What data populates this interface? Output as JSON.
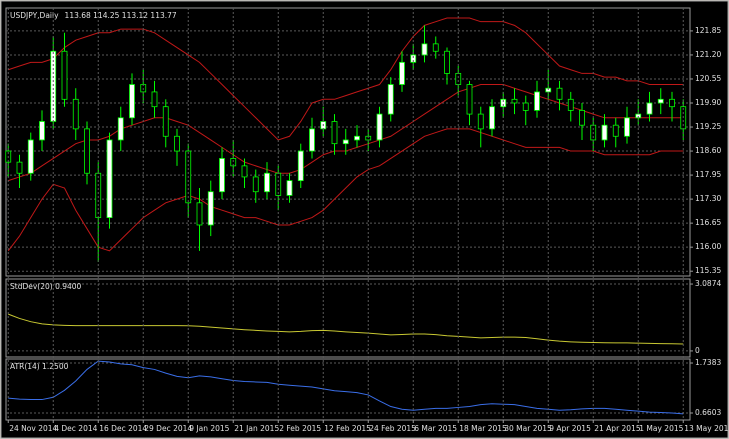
{
  "chart_data": [
    {
      "type": "candlestick",
      "title": "USDJPY,Daily",
      "subtitle": "113.68 114.25 113.12 113.77",
      "up_color": "#ffffff",
      "down_color": "#000000",
      "wick_color": "#00ff00",
      "open": [
        118.6,
        118.3,
        118.0,
        118.9,
        119.4,
        121.3,
        120.0,
        119.2,
        118.0,
        116.8,
        118.9,
        119.5,
        120.4,
        120.2,
        119.8,
        119.0,
        118.6,
        117.2,
        116.6,
        117.5,
        118.4,
        118.2,
        117.9,
        117.5,
        118.0,
        117.4,
        117.8,
        118.6,
        119.2,
        119.4,
        118.8,
        118.9,
        119.0,
        118.9,
        119.6,
        120.4,
        121.0,
        121.2,
        121.5,
        121.3,
        120.7,
        120.4,
        119.6,
        119.2,
        119.8,
        120.0,
        119.9,
        119.7,
        120.2,
        120.3,
        120.0,
        119.7,
        119.3,
        118.9,
        119.3,
        119.0,
        119.5,
        119.6,
        119.9,
        120.0,
        119.8
      ],
      "high": [
        118.8,
        118.5,
        119.1,
        119.7,
        121.7,
        121.8,
        120.3,
        119.4,
        118.3,
        119.1,
        119.8,
        120.7,
        120.8,
        120.5,
        120.0,
        119.2,
        118.8,
        117.6,
        117.8,
        118.7,
        118.9,
        118.4,
        118.1,
        118.3,
        118.2,
        118.0,
        118.8,
        119.5,
        119.8,
        119.6,
        119.2,
        119.3,
        119.2,
        119.8,
        120.6,
        121.3,
        121.5,
        122.0,
        121.7,
        121.4,
        120.9,
        120.5,
        119.8,
        120.0,
        120.2,
        120.3,
        120.1,
        120.5,
        120.8,
        120.5,
        120.2,
        119.9,
        119.5,
        119.6,
        119.5,
        119.8,
        120.0,
        120.2,
        120.3,
        120.2,
        120.0
      ],
      "low": [
        117.9,
        117.6,
        117.8,
        118.6,
        119.2,
        119.8,
        118.9,
        117.7,
        115.6,
        116.5,
        118.6,
        119.3,
        119.9,
        119.5,
        118.7,
        118.2,
        116.8,
        115.9,
        116.3,
        117.3,
        117.9,
        117.6,
        117.2,
        117.3,
        117.0,
        117.2,
        117.6,
        118.4,
        119.0,
        118.5,
        118.5,
        118.7,
        118.6,
        118.7,
        119.4,
        120.2,
        120.8,
        121.0,
        121.1,
        120.4,
        120.1,
        119.3,
        118.7,
        119.0,
        119.5,
        119.6,
        119.3,
        119.5,
        120.0,
        119.7,
        119.4,
        118.9,
        118.6,
        118.7,
        118.7,
        118.8,
        119.3,
        119.4,
        119.6,
        119.4,
        118.9
      ],
      "close": [
        118.3,
        118.0,
        118.9,
        119.4,
        121.3,
        120.0,
        119.2,
        118.0,
        116.8,
        118.9,
        119.5,
        120.4,
        120.2,
        119.8,
        119.0,
        118.6,
        117.2,
        116.6,
        117.5,
        118.4,
        118.2,
        117.9,
        117.5,
        118.0,
        117.4,
        117.8,
        118.6,
        119.2,
        119.4,
        118.8,
        118.9,
        119.0,
        118.9,
        119.6,
        120.4,
        121.0,
        121.2,
        121.5,
        121.3,
        120.7,
        120.4,
        119.6,
        119.2,
        119.8,
        120.0,
        119.9,
        119.7,
        120.2,
        120.3,
        120.0,
        119.7,
        119.3,
        118.9,
        119.3,
        119.0,
        119.5,
        119.6,
        119.9,
        120.0,
        119.8,
        119.2
      ],
      "series": [
        {
          "color": "#c01818",
          "values": [
            120.8,
            120.9,
            121.0,
            121.0,
            121.1,
            121.4,
            121.6,
            121.7,
            121.8,
            121.8,
            121.9,
            121.9,
            121.9,
            121.8,
            121.6,
            121.4,
            121.2,
            121.0,
            120.7,
            120.4,
            120.1,
            119.8,
            119.5,
            119.2,
            118.9,
            119.0,
            119.4,
            119.9,
            120.0,
            120.0,
            120.1,
            120.2,
            120.3,
            120.4,
            120.8,
            121.3,
            121.7,
            122.0,
            122.1,
            122.2,
            122.2,
            122.2,
            122.1,
            122.1,
            122.1,
            122.0,
            121.8,
            121.5,
            121.2,
            120.9,
            120.8,
            120.7,
            120.7,
            120.6,
            120.6,
            120.5,
            120.5,
            120.4,
            120.4,
            120.4,
            120.4
          ]
        },
        {
          "color": "#c01818",
          "values": [
            117.8,
            117.9,
            118.0,
            118.2,
            118.4,
            118.6,
            118.8,
            118.9,
            118.9,
            119.0,
            119.2,
            119.3,
            119.4,
            119.5,
            119.5,
            119.4,
            119.3,
            119.1,
            118.9,
            118.7,
            118.5,
            118.3,
            118.2,
            118.1,
            118.0,
            118.0,
            118.1,
            118.3,
            118.5,
            118.6,
            118.6,
            118.7,
            118.8,
            118.9,
            119.0,
            119.2,
            119.4,
            119.6,
            119.8,
            120.0,
            120.2,
            120.3,
            120.4,
            120.4,
            120.4,
            120.3,
            120.2,
            120.1,
            120.0,
            119.9,
            119.8,
            119.7,
            119.6,
            119.5,
            119.5,
            119.5,
            119.5,
            119.5,
            119.5,
            119.5,
            119.5
          ]
        },
        {
          "color": "#c01818",
          "values": [
            115.9,
            116.3,
            116.8,
            117.3,
            117.7,
            117.6,
            117.0,
            116.5,
            116.0,
            115.9,
            116.2,
            116.5,
            116.8,
            117.0,
            117.2,
            117.3,
            117.4,
            117.3,
            117.1,
            117.0,
            116.9,
            116.8,
            116.8,
            116.7,
            116.6,
            116.6,
            116.7,
            116.8,
            117.0,
            117.3,
            117.6,
            117.9,
            118.1,
            118.2,
            118.4,
            118.6,
            118.8,
            119.0,
            119.1,
            119.2,
            119.2,
            119.2,
            119.1,
            119.0,
            118.9,
            118.8,
            118.7,
            118.7,
            118.7,
            118.7,
            118.6,
            118.6,
            118.6,
            118.5,
            118.5,
            118.5,
            118.5,
            118.5,
            118.6,
            118.6,
            118.6
          ]
        }
      ],
      "ylim": [
        115.22,
        122.47
      ],
      "yticks": [
        115.35,
        {
          "value": 116,
          "label": "116.00"
        },
        116.65,
        {
          "value": 117.3,
          "label": "117.30"
        },
        117.95,
        {
          "value": 118.6,
          "label": "118.60"
        },
        119.25,
        {
          "value": 119.9,
          "label": "119.90"
        },
        120.55,
        {
          "value": 121.2,
          "label": "121.20"
        },
        121.85
      ],
      "grid": true
    },
    {
      "type": "line",
      "title": "StdDev(20) 0.9400",
      "series": [
        {
          "color": "#c8c832",
          "values": [
            1.7,
            1.5,
            1.35,
            1.25,
            1.2,
            1.18,
            1.17,
            1.17,
            1.17,
            1.17,
            1.17,
            1.17,
            1.17,
            1.17,
            1.17,
            1.17,
            1.16,
            1.14,
            1.1,
            1.06,
            1.02,
            0.98,
            0.95,
            0.92,
            0.9,
            0.88,
            0.9,
            0.94,
            0.95,
            0.92,
            0.88,
            0.85,
            0.82,
            0.78,
            0.74,
            0.76,
            0.78,
            0.78,
            0.75,
            0.7,
            0.67,
            0.64,
            0.6,
            0.62,
            0.64,
            0.64,
            0.62,
            0.56,
            0.5,
            0.45,
            0.42,
            0.4,
            0.39,
            0.38,
            0.37,
            0.37,
            0.36,
            0.35,
            0.34,
            0.33,
            0.32
          ]
        }
      ],
      "ylim": [
        -0.28,
        3.32
      ],
      "yticks": [
        0,
        3.0874
      ],
      "grid": true
    },
    {
      "type": "line",
      "title": "ATR(14) 1.2500",
      "series": [
        {
          "color": "#3a6ee8",
          "values": [
            0.98,
            0.96,
            0.95,
            0.95,
            1.0,
            1.15,
            1.35,
            1.6,
            1.78,
            1.76,
            1.72,
            1.7,
            1.64,
            1.6,
            1.52,
            1.45,
            1.42,
            1.46,
            1.44,
            1.4,
            1.36,
            1.34,
            1.33,
            1.32,
            1.28,
            1.26,
            1.24,
            1.22,
            1.18,
            1.14,
            1.12,
            1.1,
            1.05,
            0.92,
            0.8,
            0.74,
            0.72,
            0.74,
            0.76,
            0.76,
            0.78,
            0.8,
            0.84,
            0.86,
            0.85,
            0.84,
            0.8,
            0.76,
            0.74,
            0.72,
            0.73,
            0.75,
            0.76,
            0.76,
            0.74,
            0.72,
            0.7,
            0.68,
            0.67,
            0.66,
            0.64
          ]
        }
      ],
      "ylim": [
        0.509,
        1.825
      ],
      "yticks": [
        0.6603,
        1.7383
      ],
      "grid": true,
      "xlim": [
        -0.2,
        60.6
      ],
      "xticks": [
        {
          "value": 0,
          "label": "24 Nov 2014"
        },
        {
          "value": 4,
          "label": "4 Dec 2014"
        },
        {
          "value": 8,
          "label": "16 Dec 2014"
        },
        {
          "value": 12,
          "label": "29 Dec 2014"
        },
        {
          "value": 16,
          "label": "9 Jan 2015"
        },
        {
          "value": 20,
          "label": "21 Jan 2015"
        },
        {
          "value": 24,
          "label": "2 Feb 2015"
        },
        {
          "value": 28,
          "label": "12 Feb 2015"
        },
        {
          "value": 32,
          "label": "24 Feb 2015"
        },
        {
          "value": 36,
          "label": "6 Mar 2015"
        },
        {
          "value": 40,
          "label": "18 Mar 2015"
        },
        {
          "value": 44,
          "label": "30 Mar 2015"
        },
        {
          "value": 48,
          "label": "9 Apr 2015"
        },
        {
          "value": 52,
          "label": "21 Apr 2015"
        },
        {
          "value": 56,
          "label": "1 May 2015"
        },
        {
          "value": 60,
          "label": "13 May 2015"
        }
      ]
    }
  ]
}
